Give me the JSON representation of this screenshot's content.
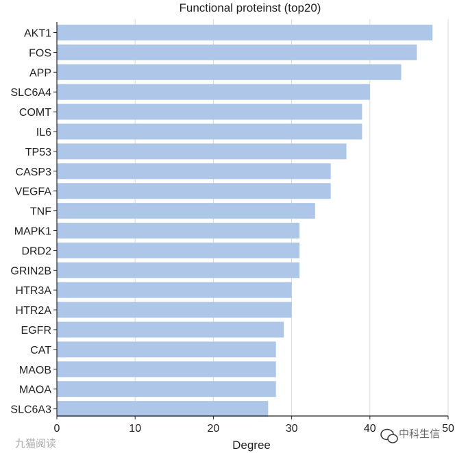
{
  "chart_data": {
    "type": "bar",
    "orientation": "horizontal",
    "title": "Functional proteinst (top20)",
    "xlabel": "Degree",
    "ylabel": "",
    "categories": [
      "AKT1",
      "FOS",
      "APP",
      "SLC6A4",
      "COMT",
      "IL6",
      "TP53",
      "CASP3",
      "VEGFA",
      "TNF",
      "MAPK1",
      "DRD2",
      "GRIN2B",
      "HTR3A",
      "HTR2A",
      "EGFR",
      "CAT",
      "MAOB",
      "MAOA",
      "SLC6A3"
    ],
    "values": [
      48,
      46,
      44,
      40,
      39,
      39,
      37,
      35,
      35,
      33,
      31,
      31,
      31,
      30,
      30,
      29,
      28,
      28,
      28,
      27
    ],
    "xlim": [
      0,
      50
    ],
    "xticks": [
      0,
      10,
      20,
      30,
      40,
      50
    ],
    "grid": "vertical",
    "bar_color": "#aec7e8",
    "grid_color": "#d9d9d9",
    "axis_color": "#222222"
  },
  "watermarks": {
    "left": "九猫阅读",
    "right": "中科生信"
  }
}
